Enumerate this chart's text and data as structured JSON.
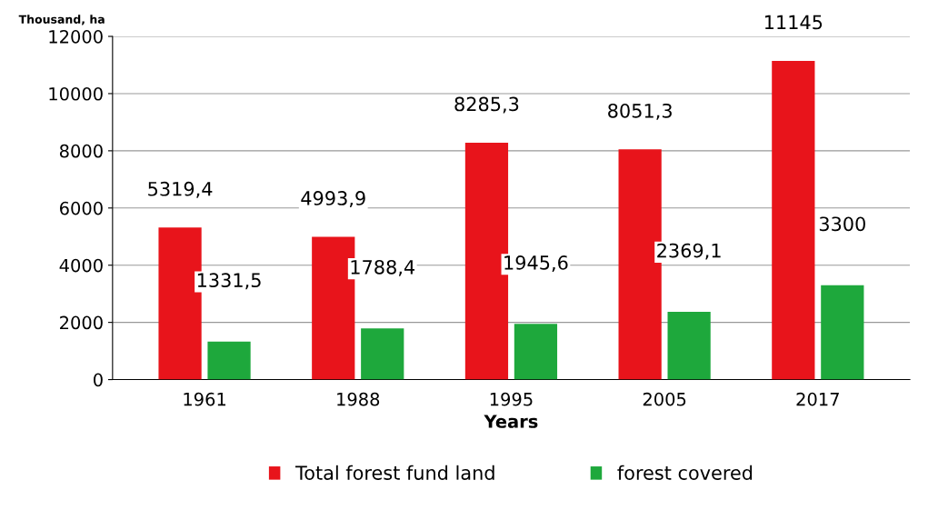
{
  "chart_data": {
    "type": "bar",
    "ylabel": "Thousand, ha",
    "xlabel": "Years",
    "categories": [
      "1961",
      "1988",
      "1995",
      "2005",
      "2017"
    ],
    "series": [
      {
        "name": "Total forest fund land",
        "color": "#e8141b",
        "values": [
          5319.4,
          4993.9,
          8285.3,
          8051.3,
          11145
        ],
        "value_labels": [
          "5319,4",
          "4993,9",
          "8285,3",
          "8051,3",
          "11145"
        ]
      },
      {
        "name": "forest covered",
        "color": "#1ea83c",
        "values": [
          1331.5,
          1788.4,
          1945.6,
          2369.1,
          3300
        ],
        "value_labels": [
          "1331,5",
          "1788,4",
          "1945,6",
          "2369,1",
          "3300"
        ]
      }
    ],
    "ylim": [
      0,
      12000
    ],
    "yticks": [
      0,
      2000,
      4000,
      6000,
      8000,
      10000,
      12000
    ],
    "grid": "y",
    "legend": "bottom"
  }
}
